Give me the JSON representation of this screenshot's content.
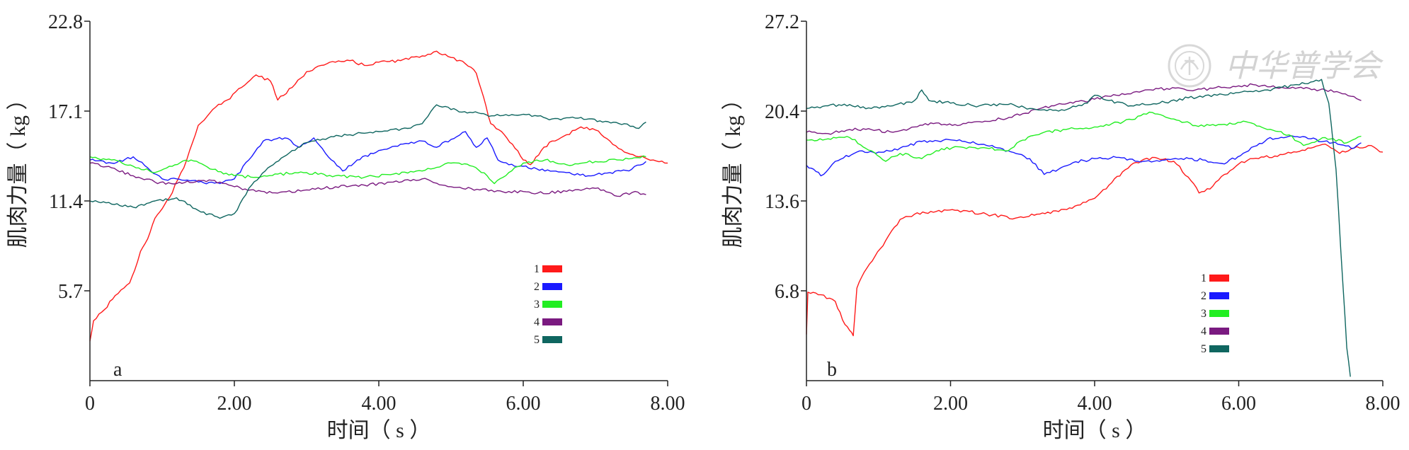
{
  "figure": {
    "background": "#ffffff",
    "axis_color": "#222222"
  },
  "series_colors": {
    "1": "#ff1a1a",
    "2": "#1a1aff",
    "3": "#22ee22",
    "4": "#7a1a80",
    "5": "#0f6660"
  },
  "watermark": {
    "text": "中华普学会",
    "color": "#c9c9c9"
  },
  "chart_data": [
    {
      "type": "line",
      "panel": "a",
      "xlabel": "时间（ s ）",
      "ylabel": "肌肉力量（ kg ）",
      "xlim": [
        0,
        8
      ],
      "ylim": [
        0,
        22.8
      ],
      "xticks": [
        "0",
        "2.00",
        "4.00",
        "6.00",
        "8.00"
      ],
      "yticks": [
        "5.7",
        "11.4",
        "17.1",
        "22.8"
      ],
      "grid": false,
      "legend_position": "lower-right",
      "series": [
        {
          "name": "1",
          "color": "#ff1a1a",
          "x": [
            0,
            0.05,
            0.2,
            0.35,
            0.55,
            0.62,
            0.7,
            0.8,
            0.9,
            1.0,
            1.1,
            1.3,
            1.5,
            1.7,
            1.9,
            2.1,
            2.3,
            2.5,
            2.6,
            2.8,
            3.0,
            3.2,
            3.4,
            3.6,
            3.8,
            4.0,
            4.3,
            4.6,
            4.8,
            5.0,
            5.2,
            5.35,
            5.45,
            5.55,
            5.7,
            5.85,
            6.0,
            6.1,
            6.25,
            6.4,
            6.6,
            6.8,
            7.0,
            7.2,
            7.4,
            7.6,
            7.8,
            8.0
          ],
          "y": [
            2.5,
            3.8,
            4.5,
            5.4,
            6.2,
            7.0,
            8.2,
            9.0,
            10.3,
            10.9,
            11.6,
            13.5,
            16.2,
            17.2,
            17.8,
            18.6,
            19.4,
            19.0,
            17.8,
            18.6,
            19.6,
            20.0,
            20.2,
            20.3,
            20.0,
            20.2,
            20.3,
            20.6,
            20.9,
            20.5,
            20.1,
            19.5,
            18.0,
            16.3,
            15.8,
            15.0,
            14.0,
            13.7,
            14.6,
            15.2,
            15.6,
            16.1,
            15.9,
            15.2,
            14.5,
            14.2,
            14.0,
            13.8
          ]
        },
        {
          "name": "2",
          "color": "#1a1aff",
          "x": [
            0,
            0.3,
            0.6,
            0.8,
            1.0,
            1.2,
            1.5,
            1.8,
            2.0,
            2.2,
            2.4,
            2.7,
            2.9,
            3.1,
            3.3,
            3.5,
            3.7,
            4.0,
            4.3,
            4.6,
            4.8,
            5.0,
            5.2,
            5.35,
            5.5,
            5.65,
            5.8,
            6.0,
            6.3,
            6.6,
            6.9,
            7.2,
            7.5,
            7.7
          ],
          "y": [
            14.0,
            13.8,
            14.2,
            13.5,
            12.8,
            12.8,
            12.6,
            12.5,
            12.8,
            14.0,
            15.2,
            15.4,
            14.8,
            15.4,
            14.2,
            13.3,
            14.0,
            14.6,
            15.0,
            15.2,
            14.8,
            15.3,
            15.8,
            14.8,
            15.4,
            14.0,
            13.7,
            13.6,
            13.3,
            13.2,
            13.0,
            13.2,
            13.4,
            13.9
          ]
        },
        {
          "name": "3",
          "color": "#22ee22",
          "x": [
            0,
            0.3,
            0.6,
            0.9,
            1.1,
            1.4,
            1.7,
            2.0,
            2.3,
            2.6,
            3.0,
            3.4,
            3.8,
            4.2,
            4.6,
            5.0,
            5.3,
            5.5,
            5.6,
            5.8,
            6.0,
            6.3,
            6.6,
            7.0,
            7.3,
            7.7
          ],
          "y": [
            14.2,
            14.0,
            13.6,
            13.2,
            13.6,
            14.0,
            13.4,
            13.0,
            12.9,
            13.1,
            13.2,
            13.0,
            12.9,
            13.1,
            13.3,
            13.8,
            13.6,
            13.0,
            12.5,
            13.2,
            13.8,
            14.0,
            13.7,
            13.9,
            14.0,
            14.2
          ]
        },
        {
          "name": "4",
          "color": "#7a1a80",
          "x": [
            0,
            0.3,
            0.6,
            0.9,
            1.2,
            1.5,
            1.8,
            2.0,
            2.3,
            2.6,
            3.0,
            3.4,
            3.8,
            4.2,
            4.6,
            5.0,
            5.4,
            5.8,
            6.2,
            6.6,
            7.0,
            7.3,
            7.55,
            7.7
          ],
          "y": [
            13.8,
            13.5,
            13.0,
            12.6,
            12.5,
            12.7,
            12.6,
            12.3,
            12.0,
            11.9,
            12.1,
            12.3,
            12.4,
            12.6,
            12.8,
            12.3,
            12.1,
            12.0,
            11.9,
            12.0,
            12.2,
            11.7,
            12.0,
            11.8
          ]
        },
        {
          "name": "5",
          "color": "#0f6660",
          "x": [
            0,
            0.3,
            0.6,
            0.9,
            1.2,
            1.5,
            1.8,
            2.0,
            2.2,
            2.5,
            2.8,
            3.0,
            3.3,
            3.6,
            4.0,
            4.4,
            4.6,
            4.8,
            5.0,
            5.3,
            5.6,
            6.0,
            6.4,
            6.8,
            7.1,
            7.4,
            7.6,
            7.7
          ],
          "y": [
            11.4,
            11.2,
            11.0,
            11.4,
            11.6,
            10.8,
            10.3,
            10.6,
            12.2,
            13.6,
            14.6,
            15.1,
            15.4,
            15.6,
            15.8,
            16.0,
            16.3,
            17.5,
            17.2,
            17.0,
            16.8,
            16.9,
            16.6,
            16.7,
            16.4,
            16.3,
            16.0,
            16.4
          ]
        }
      ]
    },
    {
      "type": "line",
      "panel": "b",
      "xlabel": "时间（ s ）",
      "ylabel": "肌肉力量（ kg ）",
      "xlim": [
        0,
        8
      ],
      "ylim": [
        0,
        27.2
      ],
      "xticks": [
        "0",
        "2.00",
        "4.00",
        "6.00",
        "8.00"
      ],
      "yticks": [
        "6.8",
        "13.6",
        "20.4",
        "27.2"
      ],
      "grid": false,
      "legend_position": "lower-right",
      "series": [
        {
          "name": "1",
          "color": "#ff1a1a",
          "x": [
            0,
            0.02,
            0.2,
            0.4,
            0.5,
            0.6,
            0.65,
            0.7,
            0.8,
            0.95,
            1.1,
            1.3,
            1.5,
            1.8,
            2.1,
            2.5,
            2.9,
            3.2,
            3.5,
            3.8,
            4.0,
            4.2,
            4.5,
            4.8,
            5.1,
            5.3,
            5.45,
            5.6,
            5.8,
            6.0,
            6.2,
            6.5,
            6.8,
            7.0,
            7.2,
            7.4,
            7.6,
            7.8,
            8.0
          ],
          "y": [
            3.5,
            6.7,
            6.5,
            6.0,
            4.6,
            3.8,
            3.4,
            7.0,
            8.2,
            9.4,
            10.6,
            12.2,
            12.6,
            12.8,
            12.9,
            12.6,
            12.3,
            12.6,
            12.8,
            13.3,
            13.8,
            14.8,
            16.3,
            16.9,
            16.6,
            15.4,
            14.2,
            14.5,
            15.6,
            16.4,
            16.8,
            17.0,
            17.3,
            17.6,
            17.9,
            17.2,
            17.6,
            17.8,
            17.3
          ]
        },
        {
          "name": "2",
          "color": "#1a1aff",
          "x": [
            0,
            0.1,
            0.2,
            0.4,
            0.7,
            1.0,
            1.3,
            1.6,
            1.9,
            2.2,
            2.5,
            2.8,
            3.1,
            3.3,
            3.5,
            3.7,
            4.0,
            4.3,
            4.6,
            4.9,
            5.2,
            5.5,
            5.8,
            6.1,
            6.4,
            6.7,
            7.0,
            7.3,
            7.6,
            7.7
          ],
          "y": [
            16.3,
            16.0,
            15.5,
            16.6,
            17.3,
            17.3,
            17.6,
            18.1,
            18.2,
            18.1,
            17.8,
            17.4,
            16.8,
            15.6,
            16.0,
            16.5,
            16.8,
            16.9,
            16.6,
            16.6,
            16.8,
            16.7,
            16.4,
            17.3,
            18.3,
            18.5,
            18.3,
            18.0,
            17.6,
            18.0
          ]
        },
        {
          "name": "3",
          "color": "#22ee22",
          "x": [
            0,
            0.3,
            0.6,
            0.9,
            1.1,
            1.3,
            1.6,
            1.8,
            2.1,
            2.5,
            2.8,
            3.0,
            3.3,
            3.6,
            4.0,
            4.4,
            4.8,
            5.1,
            5.4,
            5.8,
            6.1,
            6.4,
            6.7,
            6.9,
            7.2,
            7.5,
            7.7
          ],
          "y": [
            18.2,
            18.3,
            18.4,
            17.4,
            16.6,
            17.2,
            16.8,
            17.4,
            17.7,
            17.6,
            17.4,
            18.2,
            18.8,
            19.0,
            19.2,
            19.6,
            20.3,
            19.8,
            19.3,
            19.4,
            19.6,
            19.0,
            18.6,
            17.8,
            18.4,
            18.0,
            18.5
          ]
        },
        {
          "name": "4",
          "color": "#7a1a80",
          "x": [
            0,
            0.3,
            0.6,
            0.9,
            1.2,
            1.5,
            1.8,
            2.1,
            2.4,
            2.7,
            3.0,
            3.4,
            3.7,
            4.0,
            4.3,
            4.7,
            5.0,
            5.4,
            5.8,
            6.2,
            6.6,
            6.9,
            7.2,
            7.4,
            7.6,
            7.7
          ],
          "y": [
            18.8,
            18.7,
            19.0,
            19.0,
            18.8,
            19.2,
            19.5,
            19.3,
            19.6,
            19.8,
            20.2,
            20.8,
            21.0,
            21.3,
            21.6,
            22.0,
            22.1,
            22.0,
            22.2,
            22.4,
            22.2,
            22.1,
            22.0,
            21.8,
            21.5,
            21.2
          ]
        },
        {
          "name": "5",
          "color": "#0f6660",
          "x": [
            0,
            0.3,
            0.6,
            0.9,
            1.2,
            1.5,
            1.6,
            1.7,
            2.0,
            2.4,
            2.8,
            3.1,
            3.5,
            3.9,
            4.0,
            4.2,
            4.5,
            4.9,
            5.3,
            5.7,
            6.0,
            6.4,
            6.8,
            7.0,
            7.15,
            7.25,
            7.35,
            7.45,
            7.5,
            7.55
          ],
          "y": [
            20.6,
            20.8,
            20.9,
            20.6,
            20.8,
            21.2,
            22.0,
            21.2,
            21.0,
            20.8,
            20.9,
            20.6,
            20.4,
            21.0,
            21.6,
            21.2,
            20.8,
            21.0,
            21.4,
            21.6,
            21.8,
            22.0,
            22.4,
            22.6,
            22.8,
            21.0,
            16.0,
            7.0,
            2.5,
            0.3
          ]
        }
      ]
    }
  ]
}
